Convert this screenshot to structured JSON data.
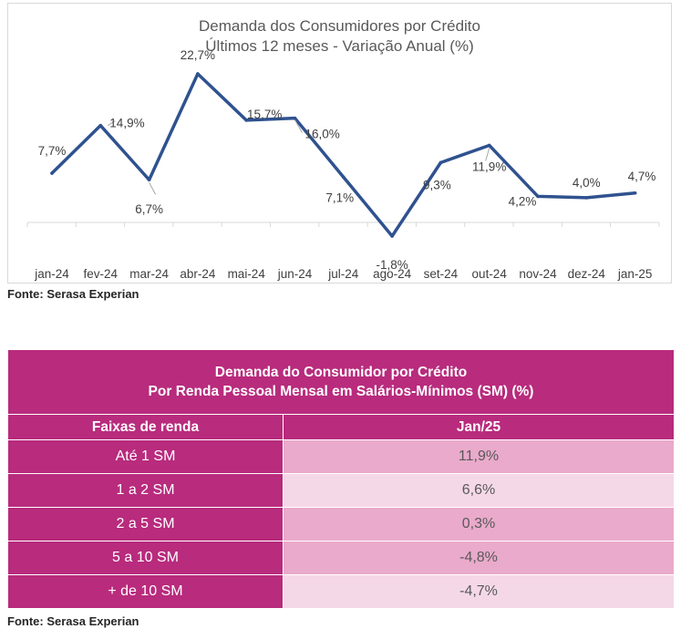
{
  "chart": {
    "title_line1": "Demanda dos Consumidores por Crédito",
    "title_line2": "Últimos 12 meses - Variação Anual (%)",
    "source": "Fonte: Serasa Experian"
  },
  "chart_data": {
    "type": "line",
    "title": "Demanda dos Consumidores por Crédito — Últimos 12 meses - Variação Anual (%)",
    "categories": [
      "jan-24",
      "fev-24",
      "mar-24",
      "abr-24",
      "mai-24",
      "jun-24",
      "jul-24",
      "ago-24",
      "set-24",
      "out-24",
      "nov-24",
      "dez-24",
      "jan-25"
    ],
    "series": [
      {
        "values": [
          7.7,
          14.9,
          6.7,
          22.7,
          15.7,
          16.0,
          7.1,
          -1.8,
          9.3,
          11.9,
          4.2,
          4.0,
          4.7
        ]
      }
    ],
    "data_labels": [
      "7,7%",
      "14,9%",
      "6,7%",
      "22,7%",
      "15,7%",
      "16,0%",
      "7,1%",
      "-1,8%",
      "9,3%",
      "11,9%",
      "4,2%",
      "4,0%",
      "4,7%"
    ],
    "color": "#2f528f",
    "ylim": [
      -1.8,
      22.7
    ],
    "grid": false,
    "legend": "none"
  },
  "table": {
    "title_line1": "Demanda do Consumidor por Crédito",
    "title_line2": "Por Renda Pessoal Mensal em Salários-Mínimos (SM) (%)",
    "col1_header": "Faixas de renda",
    "col2_header": "Jan/25",
    "rows": [
      {
        "label": "Até 1 SM",
        "value": "11,9%"
      },
      {
        "label": "1 a 2 SM",
        "value": "6,6%"
      },
      {
        "label": "2 a 5 SM",
        "value": "0,3%"
      },
      {
        "label": "5 a 10 SM",
        "value": "-4,8%"
      },
      {
        "label": "+ de 10 SM",
        "value": "-4,7%"
      }
    ],
    "colors": {
      "header": "#b82b7d",
      "cell_dark": "#eaaacb",
      "cell_light": "#f5d8e8"
    },
    "source": "Fonte: Serasa Experian"
  }
}
